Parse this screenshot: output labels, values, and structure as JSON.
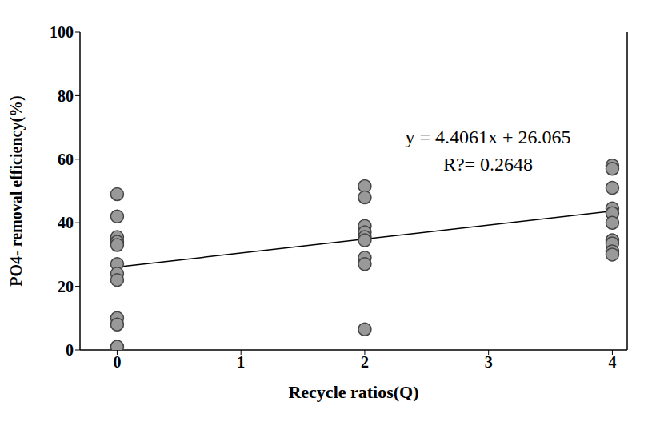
{
  "chart_data": {
    "type": "scatter",
    "x_label": "Recycle ratios(Q)",
    "y_label": "PO4- removal efficiency(%)",
    "x": [
      0,
      0,
      0,
      0,
      0,
      0,
      0,
      0,
      0,
      0,
      0,
      2,
      2,
      2,
      2,
      2,
      2,
      2,
      2,
      2,
      4,
      4,
      4,
      4,
      4,
      4,
      4,
      4,
      4,
      4
    ],
    "values": [
      49,
      42,
      35.5,
      34,
      33,
      27,
      24,
      22,
      10,
      8,
      1,
      51.5,
      48,
      39,
      37,
      35.5,
      34.5,
      29,
      27,
      6.5,
      58,
      57,
      51,
      44.5,
      43,
      40,
      34.5,
      33.5,
      31,
      30
    ],
    "color": "#999999",
    "marker": "circle",
    "trendline": {
      "slope": 4.4061,
      "intercept": 26.065
    },
    "annotations": [
      "y = 4.4061x + 26.065",
      "R?= 0.2648"
    ],
    "xlim": [
      -0.3,
      4.12
    ],
    "xticks": [
      0,
      1,
      2,
      3,
      4
    ],
    "ylim": [
      0,
      100
    ],
    "yticks": [
      0,
      20,
      40,
      60,
      80,
      100
    ],
    "grid": false
  }
}
